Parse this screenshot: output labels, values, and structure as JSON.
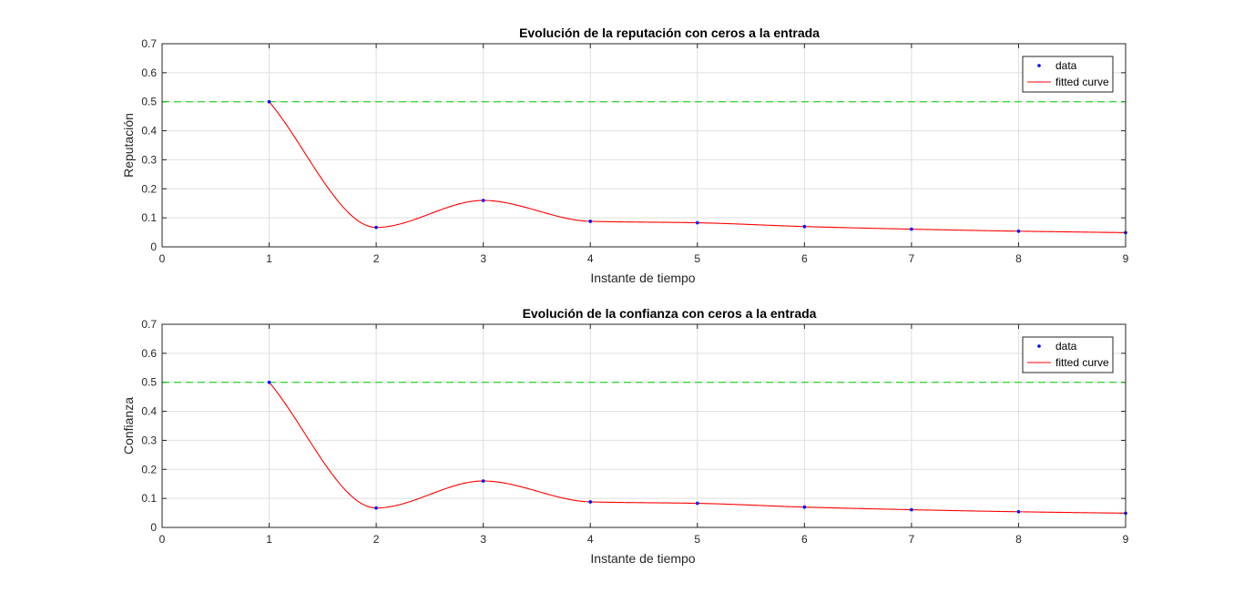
{
  "chart_data": [
    {
      "type": "line",
      "title": "Evolución de la reputación con ceros a la entrada",
      "xlabel": "Instante de tiempo",
      "ylabel": "Reputación",
      "xlim": [
        0,
        9
      ],
      "ylim": [
        0,
        0.7
      ],
      "xticks": [
        "0",
        "1",
        "2",
        "3",
        "4",
        "5",
        "6",
        "7",
        "8",
        "9"
      ],
      "yticks": [
        "0",
        "0.1",
        "0.2",
        "0.3",
        "0.4",
        "0.5",
        "0.6",
        "0.7"
      ],
      "grid": true,
      "legend_position": "top-right",
      "reference_line": {
        "y": 0.5,
        "color": "#00cc00",
        "style": "dashed"
      },
      "series": [
        {
          "name": "data",
          "kind": "markers",
          "color": "#0000ff",
          "x": [
            1,
            2,
            3,
            4,
            5,
            6,
            7,
            8,
            9
          ],
          "y": [
            0.5,
            0.067,
            0.16,
            0.088,
            0.083,
            0.07,
            0.061,
            0.054,
            0.049
          ]
        },
        {
          "name": "fitted curve",
          "kind": "line",
          "color": "#ff0000",
          "x": [
            1,
            2,
            3,
            4,
            5,
            6,
            7,
            8,
            9
          ],
          "y": [
            0.5,
            0.067,
            0.16,
            0.088,
            0.083,
            0.07,
            0.061,
            0.054,
            0.049
          ]
        }
      ]
    },
    {
      "type": "line",
      "title": "Evolución de la confianza con ceros a la entrada",
      "xlabel": "Instante de tiempo",
      "ylabel": "Confianza",
      "xlim": [
        0,
        9
      ],
      "ylim": [
        0,
        0.7
      ],
      "xticks": [
        "0",
        "1",
        "2",
        "3",
        "4",
        "5",
        "6",
        "7",
        "8",
        "9"
      ],
      "yticks": [
        "0",
        "0.1",
        "0.2",
        "0.3",
        "0.4",
        "0.5",
        "0.6",
        "0.7"
      ],
      "grid": true,
      "legend_position": "top-right",
      "reference_line": {
        "y": 0.5,
        "color": "#00cc00",
        "style": "dashed"
      },
      "series": [
        {
          "name": "data",
          "kind": "markers",
          "color": "#0000ff",
          "x": [
            1,
            2,
            3,
            4,
            5,
            6,
            7,
            8,
            9
          ],
          "y": [
            0.5,
            0.067,
            0.16,
            0.088,
            0.083,
            0.07,
            0.061,
            0.054,
            0.049
          ]
        },
        {
          "name": "fitted curve",
          "kind": "line",
          "color": "#ff0000",
          "x": [
            1,
            2,
            3,
            4,
            5,
            6,
            7,
            8,
            9
          ],
          "y": [
            0.5,
            0.067,
            0.16,
            0.088,
            0.083,
            0.07,
            0.061,
            0.054,
            0.049
          ]
        }
      ]
    }
  ]
}
